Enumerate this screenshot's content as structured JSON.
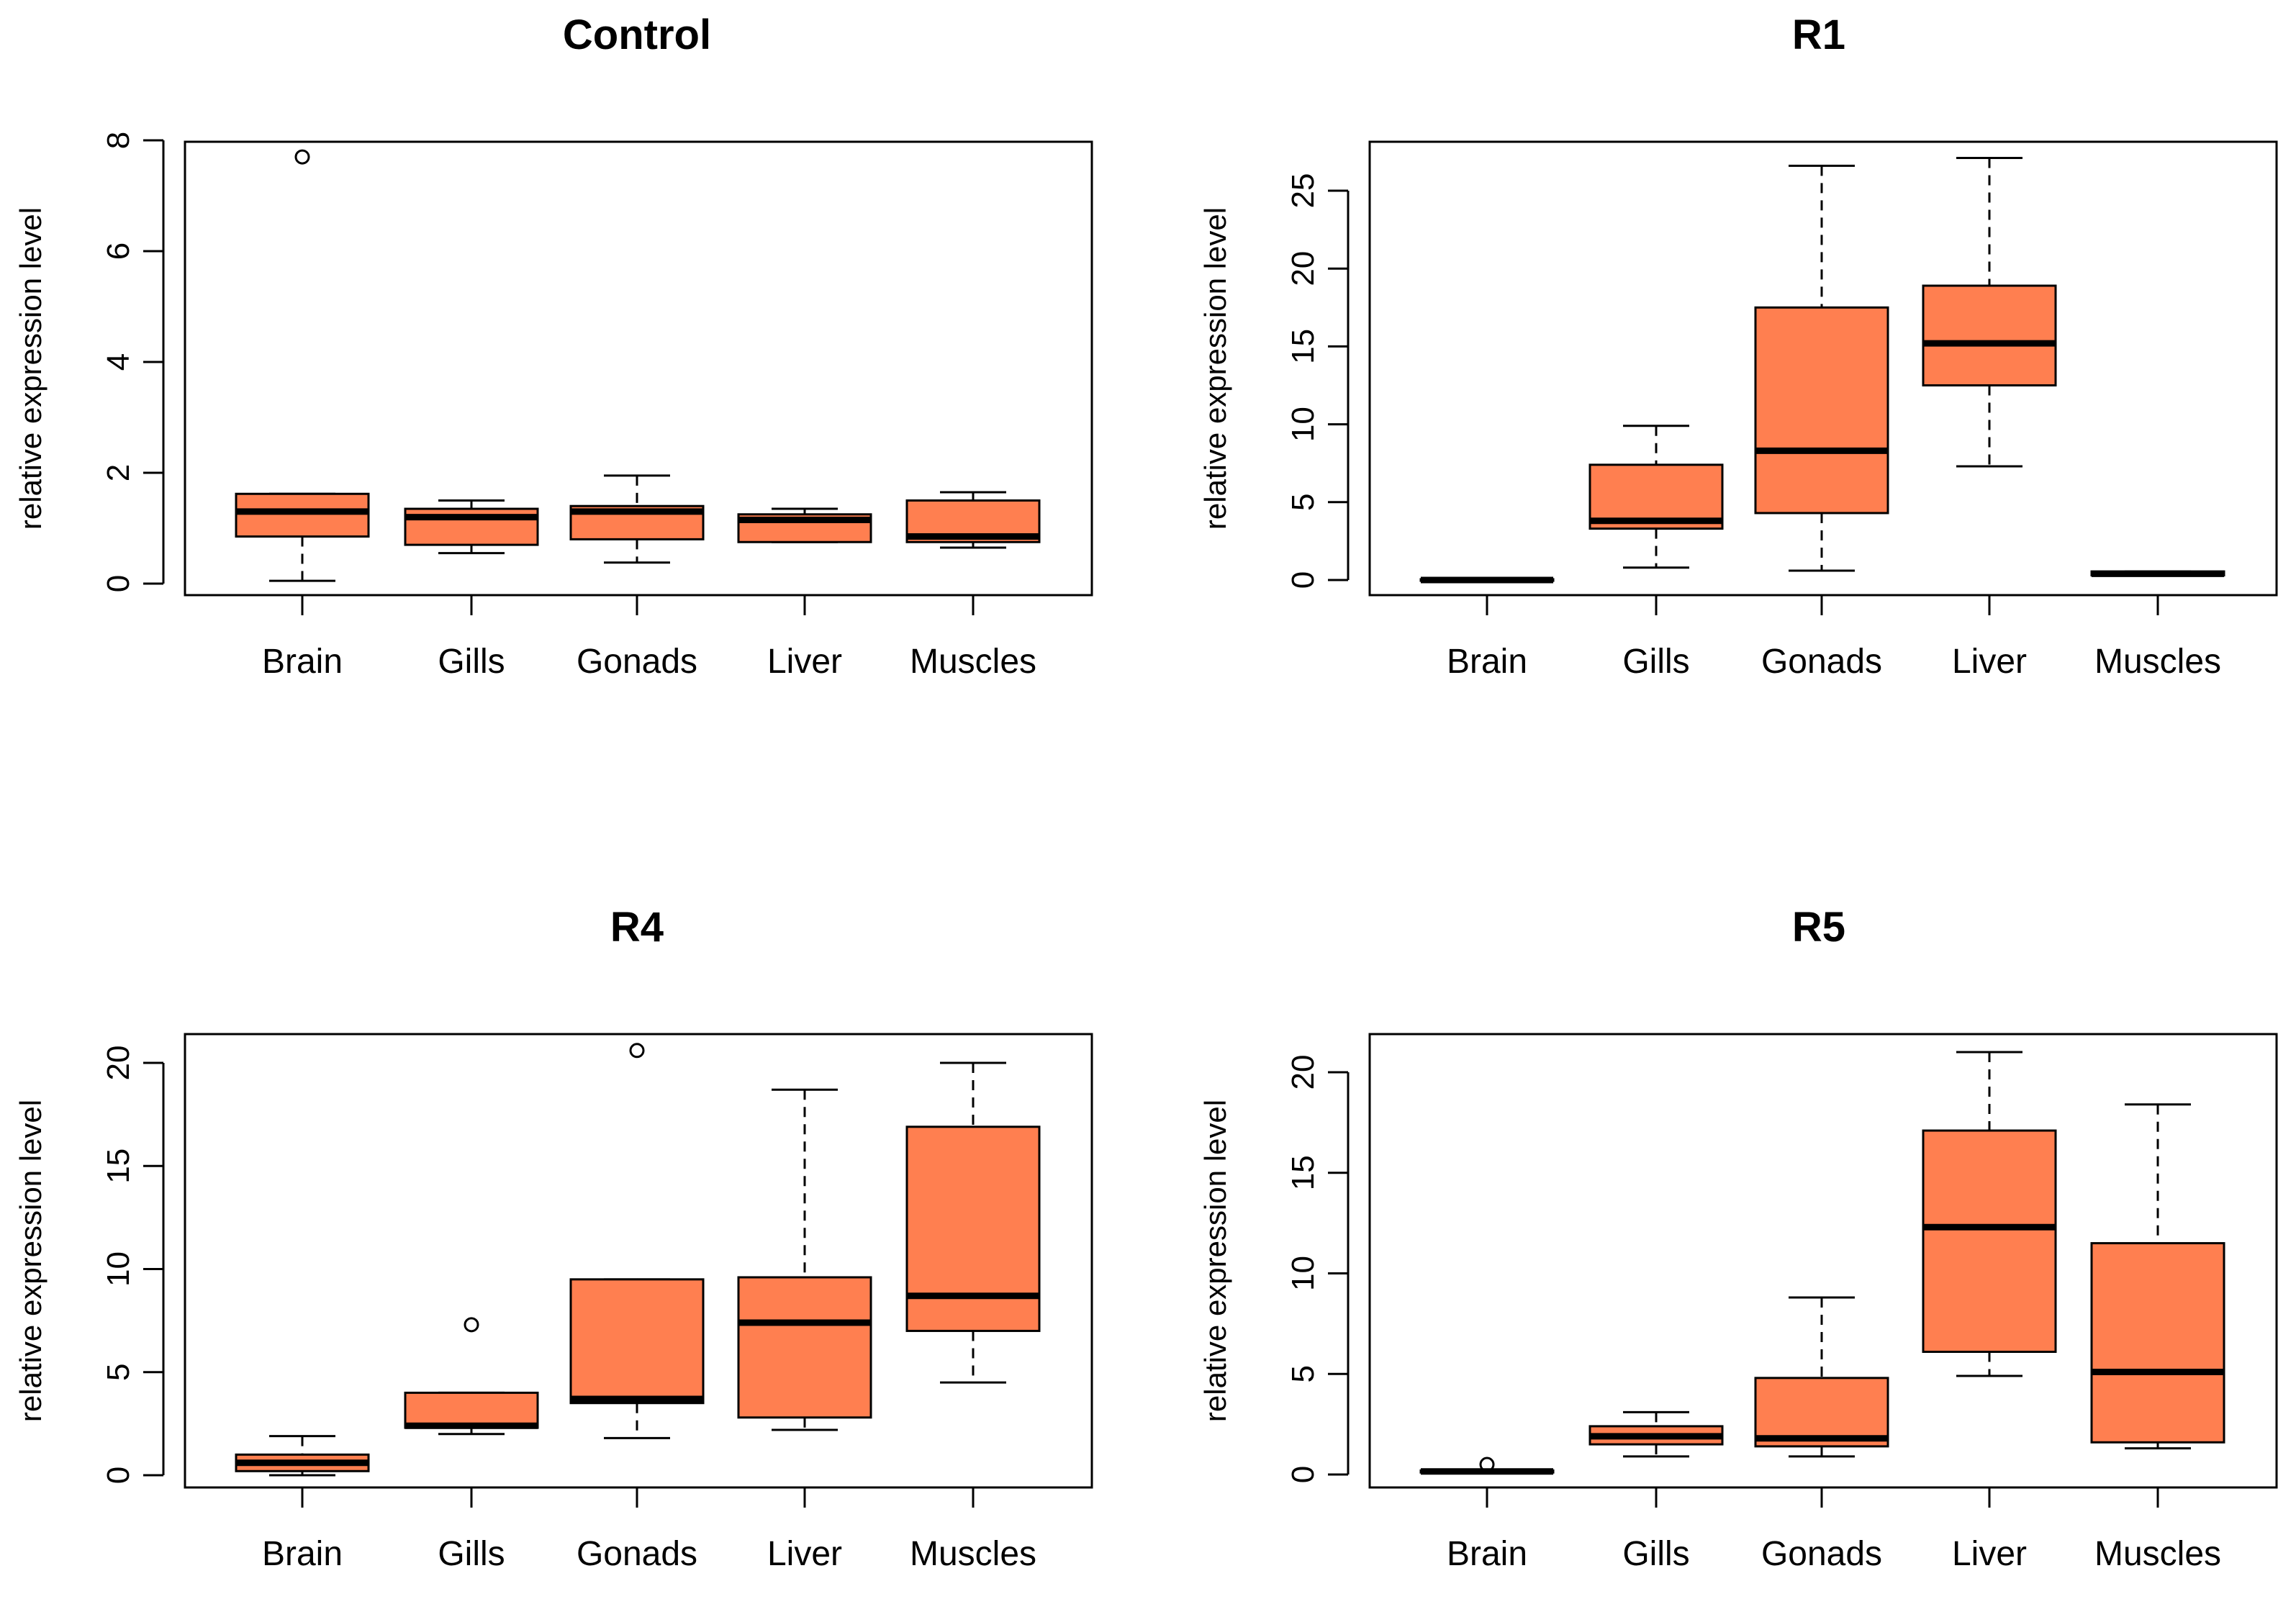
{
  "figure": {
    "box_fill": "#ff7f50",
    "line_color": "#000000",
    "whisker_color": "#000000"
  },
  "chart_data": [
    {
      "type": "boxplot",
      "title": "Control",
      "xlabel": "",
      "ylabel": "relative expression level",
      "ylim": [
        0,
        8
      ],
      "yticks": [
        "0",
        "2",
        "4",
        "6",
        "8"
      ],
      "ytick_values": [
        0,
        2,
        4,
        6,
        8
      ],
      "categories": [
        "Brain",
        "Gills",
        "Gonads",
        "Liver",
        "Muscles"
      ],
      "boxes": [
        {
          "category": "Brain",
          "whisker_low": 0.05,
          "q1": 0.85,
          "median": 1.3,
          "q3": 1.62,
          "whisker_high": 1.62,
          "outliers": [
            7.7
          ]
        },
        {
          "category": "Gills",
          "whisker_low": 0.55,
          "q1": 0.7,
          "median": 1.2,
          "q3": 1.35,
          "whisker_high": 1.5,
          "outliers": []
        },
        {
          "category": "Gonads",
          "whisker_low": 0.38,
          "q1": 0.8,
          "median": 1.3,
          "q3": 1.4,
          "whisker_high": 1.95,
          "outliers": []
        },
        {
          "category": "Liver",
          "whisker_low": 0.75,
          "q1": 0.75,
          "median": 1.15,
          "q3": 1.25,
          "whisker_high": 1.35,
          "outliers": []
        },
        {
          "category": "Muscles",
          "whisker_low": 0.65,
          "q1": 0.75,
          "median": 0.85,
          "q3": 1.5,
          "whisker_high": 1.65,
          "outliers": []
        }
      ]
    },
    {
      "type": "boxplot",
      "title": "R1",
      "xlabel": "",
      "ylabel": "relative expression level",
      "ylim": [
        0,
        27
      ],
      "yticks": [
        "0",
        "5",
        "10",
        "15",
        "20",
        "25"
      ],
      "ytick_values": [
        0,
        5,
        10,
        15,
        20,
        25
      ],
      "categories": [
        "Brain",
        "Gills",
        "Gonads",
        "Liver",
        "Muscles"
      ],
      "boxes": [
        {
          "category": "Brain",
          "whisker_low": -0.05,
          "q1": -0.05,
          "median": 0.0,
          "q3": 0.05,
          "whisker_high": 0.05,
          "outliers": []
        },
        {
          "category": "Gills",
          "whisker_low": 0.8,
          "q1": 3.3,
          "median": 3.8,
          "q3": 7.4,
          "whisker_high": 9.9,
          "outliers": []
        },
        {
          "category": "Gonads",
          "whisker_low": 0.6,
          "q1": 4.3,
          "median": 8.3,
          "q3": 17.5,
          "whisker_high": 26.6,
          "outliers": []
        },
        {
          "category": "Liver",
          "whisker_low": 7.3,
          "q1": 12.5,
          "median": 15.2,
          "q3": 18.9,
          "whisker_high": 27.1,
          "outliers": []
        },
        {
          "category": "Muscles",
          "whisker_low": 0.3,
          "q1": 0.3,
          "median": 0.4,
          "q3": 0.55,
          "whisker_high": 0.55,
          "outliers": []
        }
      ]
    },
    {
      "type": "boxplot",
      "title": "R4",
      "xlabel": "",
      "ylabel": "relative expression level",
      "ylim": [
        0,
        21
      ],
      "yticks": [
        "0",
        "5",
        "10",
        "15",
        "20"
      ],
      "ytick_values": [
        0,
        5,
        10,
        15,
        20
      ],
      "categories": [
        "Brain",
        "Gills",
        "Gonads",
        "Liver",
        "Muscles"
      ],
      "boxes": [
        {
          "category": "Brain",
          "whisker_low": 0.0,
          "q1": 0.2,
          "median": 0.6,
          "q3": 1.0,
          "whisker_high": 1.9,
          "outliers": []
        },
        {
          "category": "Gills",
          "whisker_low": 2.0,
          "q1": 2.3,
          "median": 2.4,
          "q3": 4.0,
          "whisker_high": 4.0,
          "outliers": [
            7.3
          ]
        },
        {
          "category": "Gonads",
          "whisker_low": 1.8,
          "q1": 3.5,
          "median": 3.7,
          "q3": 9.5,
          "whisker_high": 9.5,
          "outliers": [
            20.6
          ]
        },
        {
          "category": "Liver",
          "whisker_low": 2.2,
          "q1": 2.8,
          "median": 7.4,
          "q3": 9.6,
          "whisker_high": 18.7,
          "outliers": []
        },
        {
          "category": "Muscles",
          "whisker_low": 4.5,
          "q1": 7.0,
          "median": 8.7,
          "q3": 16.9,
          "whisker_high": 20.0,
          "outliers": []
        }
      ]
    },
    {
      "type": "boxplot",
      "title": "R5",
      "xlabel": "",
      "ylabel": "relative expression level",
      "ylim": [
        0,
        21.5
      ],
      "yticks": [
        "0",
        "5",
        "10",
        "15",
        "20"
      ],
      "ytick_values": [
        0,
        5,
        10,
        15,
        20
      ],
      "categories": [
        "Brain",
        "Gills",
        "Gonads",
        "Liver",
        "Muscles"
      ],
      "boxes": [
        {
          "category": "Brain",
          "whisker_low": 0.1,
          "q1": 0.1,
          "median": 0.15,
          "q3": 0.2,
          "whisker_high": 0.2,
          "outliers": [
            0.5
          ]
        },
        {
          "category": "Gills",
          "whisker_low": 0.9,
          "q1": 1.5,
          "median": 1.9,
          "q3": 2.4,
          "whisker_high": 3.1,
          "outliers": []
        },
        {
          "category": "Gonads",
          "whisker_low": 0.9,
          "q1": 1.4,
          "median": 1.8,
          "q3": 4.8,
          "whisker_high": 8.8,
          "outliers": []
        },
        {
          "category": "Liver",
          "whisker_low": 4.9,
          "q1": 6.1,
          "median": 12.3,
          "q3": 17.1,
          "whisker_high": 21.0,
          "outliers": []
        },
        {
          "category": "Muscles",
          "whisker_low": 1.3,
          "q1": 1.6,
          "median": 5.1,
          "q3": 11.5,
          "whisker_high": 18.4,
          "outliers": []
        }
      ]
    }
  ]
}
